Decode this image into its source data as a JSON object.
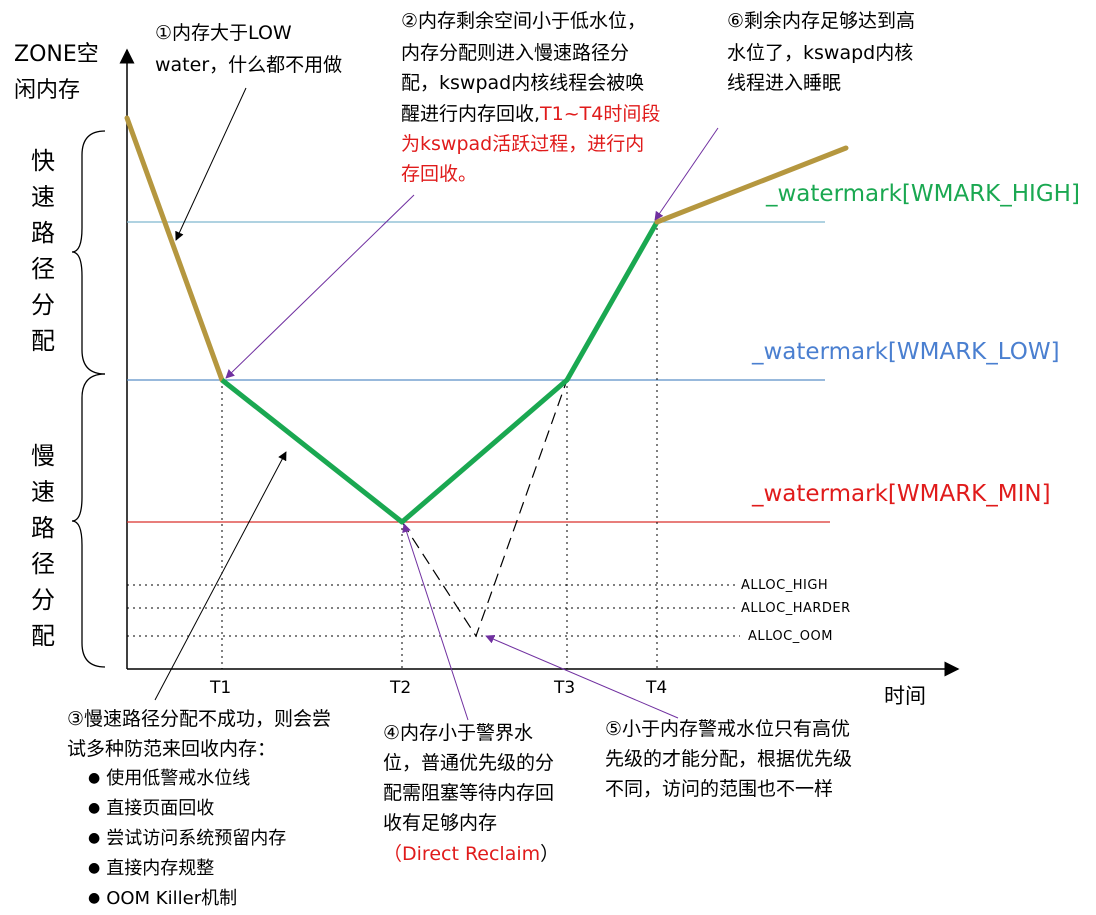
{
  "axes": {
    "y_label_line1": "ZONE空",
    "y_label_line2": "闲内存",
    "x_label": "时间",
    "ticks": [
      "T1",
      "T2",
      "T3",
      "T4"
    ]
  },
  "regions": {
    "fast": [
      "快",
      "速",
      "路",
      "径",
      "分",
      "配"
    ],
    "slow": [
      "慢",
      "速",
      "路",
      "径",
      "分",
      "配"
    ]
  },
  "watermarks": {
    "high": "_watermark[WMARK_HIGH]",
    "low": "_watermark[WMARK_LOW]",
    "min": "_watermark[WMARK_MIN]"
  },
  "alloc_levels": {
    "high": "ALLOC_HIGH",
    "harder": "ALLOC_HARDER",
    "oom": "ALLOC_OOM"
  },
  "notes": {
    "n1": [
      "①内存大于LOW",
      "water，什么都不用做"
    ],
    "n2": [
      "②内存剩余空间小于低水位，",
      "内存分配则进入慢速路径分",
      "配，kswpad内核线程会被唤",
      "醒进行内存回收,"
    ],
    "n2_red": [
      "T1~T4时间段",
      "为kswpad活跃过程，进行内",
      "存回收。"
    ],
    "n3": [
      "③慢速路径分配不成功，则会尝",
      "试多种防范来回收内存："
    ],
    "n3_bullets": [
      "使用低警戒水位线",
      "直接页面回收",
      "尝试访问系统预留内存",
      "直接内存规整",
      "OOM Killer机制"
    ],
    "n4": [
      "④内存小于警界水",
      "位，普通优先级的分",
      "配需阻塞等待内存回",
      "收有足够内存"
    ],
    "n4_red_open": "（",
    "n4_red": "Direct Reclaim",
    "n4_red_close": "）",
    "n5": [
      "⑤小于内存警戒水位只有高优",
      "先级的才能分配，根据优先级",
      "不同，访问的范围也不一样"
    ],
    "n6": [
      "⑥剩余内存足够达到高",
      "水位了，kswapd内核",
      "线程进入睡眠"
    ]
  },
  "colors": {
    "fast_path": "#b5973f",
    "slow_path": "#1aa851",
    "high_line": "#7fb8cf",
    "low_line": "#5b8fc7",
    "min_line": "#d9302c",
    "high_label": "#1aa851",
    "low_label": "#4a7fd0",
    "min_label": "#e01b1b",
    "arrow": "#7030a0"
  }
}
